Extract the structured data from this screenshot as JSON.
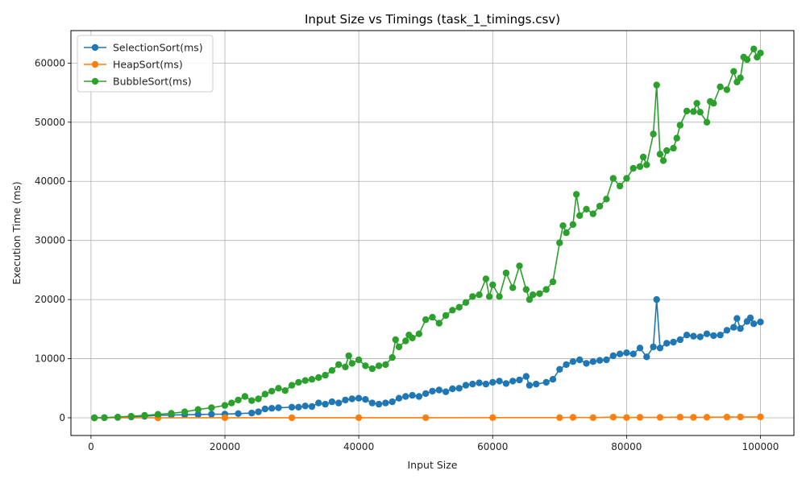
{
  "chart_data": {
    "type": "line",
    "title": "Input Size vs Timings (task_1_timings.csv)",
    "xlabel": "Input Size",
    "ylabel": "Execution Time (ms)",
    "xlim": [
      -3000,
      105000
    ],
    "ylim": [
      -3000,
      65500
    ],
    "xticks": [
      0,
      20000,
      40000,
      60000,
      80000,
      100000
    ],
    "yticks": [
      0,
      10000,
      20000,
      30000,
      40000,
      50000,
      60000
    ],
    "grid": true,
    "legend_position": "top-left",
    "marker": "circle",
    "series": [
      {
        "name": "SelectionSort(ms)",
        "color": "#1f77b4",
        "points": [
          [
            500,
            0
          ],
          [
            2000,
            20
          ],
          [
            4000,
            70
          ],
          [
            6000,
            150
          ],
          [
            8000,
            260
          ],
          [
            10000,
            400
          ],
          [
            12000,
            460
          ],
          [
            14000,
            520
          ],
          [
            16000,
            560
          ],
          [
            18000,
            590
          ],
          [
            20000,
            620
          ],
          [
            22000,
            700
          ],
          [
            24000,
            800
          ],
          [
            25000,
            1000
          ],
          [
            26000,
            1500
          ],
          [
            27000,
            1600
          ],
          [
            28000,
            1700
          ],
          [
            30000,
            1800
          ],
          [
            31000,
            1800
          ],
          [
            32000,
            2000
          ],
          [
            33000,
            1900
          ],
          [
            34000,
            2500
          ],
          [
            35000,
            2300
          ],
          [
            36000,
            2700
          ],
          [
            37000,
            2500
          ],
          [
            38000,
            3000
          ],
          [
            39000,
            3200
          ],
          [
            40000,
            3300
          ],
          [
            41000,
            3100
          ],
          [
            42000,
            2500
          ],
          [
            43000,
            2300
          ],
          [
            44000,
            2500
          ],
          [
            45000,
            2700
          ],
          [
            46000,
            3300
          ],
          [
            47000,
            3600
          ],
          [
            48000,
            3800
          ],
          [
            49000,
            3600
          ],
          [
            50000,
            4100
          ],
          [
            51000,
            4500
          ],
          [
            52000,
            4700
          ],
          [
            53000,
            4400
          ],
          [
            54000,
            4900
          ],
          [
            55000,
            5000
          ],
          [
            56000,
            5500
          ],
          [
            57000,
            5700
          ],
          [
            58000,
            5900
          ],
          [
            59000,
            5700
          ],
          [
            60000,
            6000
          ],
          [
            61000,
            6200
          ],
          [
            62000,
            5800
          ],
          [
            63000,
            6200
          ],
          [
            64000,
            6400
          ],
          [
            65000,
            7000
          ],
          [
            65500,
            5500
          ],
          [
            66500,
            5700
          ],
          [
            68000,
            6000
          ],
          [
            69000,
            6500
          ],
          [
            70000,
            8200
          ],
          [
            71000,
            9000
          ],
          [
            72000,
            9500
          ],
          [
            73000,
            9800
          ],
          [
            74000,
            9200
          ],
          [
            75000,
            9500
          ],
          [
            76000,
            9700
          ],
          [
            77000,
            9800
          ],
          [
            78000,
            10500
          ],
          [
            79000,
            10800
          ],
          [
            80000,
            11000
          ],
          [
            81000,
            10800
          ],
          [
            82000,
            11800
          ],
          [
            83000,
            10300
          ],
          [
            84000,
            12000
          ],
          [
            84500,
            20000
          ],
          [
            85000,
            11800
          ],
          [
            86000,
            12600
          ],
          [
            87000,
            12800
          ],
          [
            88000,
            13200
          ],
          [
            89000,
            14000
          ],
          [
            90000,
            13800
          ],
          [
            91000,
            13700
          ],
          [
            92000,
            14200
          ],
          [
            93000,
            13900
          ],
          [
            94000,
            14000
          ],
          [
            95000,
            14800
          ],
          [
            96000,
            15300
          ],
          [
            96500,
            16800
          ],
          [
            97000,
            15100
          ],
          [
            98000,
            16300
          ],
          [
            98500,
            16900
          ],
          [
            99000,
            15900
          ],
          [
            100000,
            16200
          ]
        ]
      },
      {
        "name": "HeapSort(ms)",
        "color": "#ff7f0e",
        "points": [
          [
            500,
            0
          ],
          [
            10000,
            2
          ],
          [
            20000,
            5
          ],
          [
            30000,
            8
          ],
          [
            40000,
            12
          ],
          [
            50000,
            16
          ],
          [
            60000,
            22
          ],
          [
            70000,
            28
          ],
          [
            72000,
            60
          ],
          [
            75000,
            30
          ],
          [
            78000,
            110
          ],
          [
            80000,
            40
          ],
          [
            82000,
            80
          ],
          [
            85000,
            60
          ],
          [
            88000,
            100
          ],
          [
            90000,
            70
          ],
          [
            92000,
            90
          ],
          [
            95000,
            120
          ],
          [
            97000,
            130
          ],
          [
            100000,
            150
          ]
        ]
      },
      {
        "name": "BubbleSort(ms)",
        "color": "#2ca02c",
        "points": [
          [
            500,
            0
          ],
          [
            2000,
            30
          ],
          [
            4000,
            120
          ],
          [
            6000,
            250
          ],
          [
            8000,
            400
          ],
          [
            10000,
            580
          ],
          [
            12000,
            750
          ],
          [
            14000,
            1000
          ],
          [
            16000,
            1400
          ],
          [
            18000,
            1700
          ],
          [
            20000,
            2100
          ],
          [
            21000,
            2500
          ],
          [
            22000,
            3000
          ],
          [
            23000,
            3600
          ],
          [
            24000,
            2900
          ],
          [
            25000,
            3200
          ],
          [
            26000,
            4000
          ],
          [
            27000,
            4500
          ],
          [
            28000,
            5000
          ],
          [
            29000,
            4600
          ],
          [
            30000,
            5500
          ],
          [
            31000,
            6000
          ],
          [
            32000,
            6300
          ],
          [
            33000,
            6500
          ],
          [
            34000,
            6800
          ],
          [
            35000,
            7200
          ],
          [
            36000,
            8000
          ],
          [
            37000,
            9000
          ],
          [
            38000,
            8600
          ],
          [
            38500,
            10500
          ],
          [
            39000,
            9200
          ],
          [
            40000,
            9800
          ],
          [
            41000,
            8800
          ],
          [
            42000,
            8300
          ],
          [
            43000,
            8800
          ],
          [
            44000,
            9000
          ],
          [
            45000,
            10200
          ],
          [
            45500,
            13200
          ],
          [
            46000,
            12000
          ],
          [
            47000,
            13000
          ],
          [
            47500,
            14000
          ],
          [
            48000,
            13500
          ],
          [
            49000,
            14200
          ],
          [
            50000,
            16600
          ],
          [
            51000,
            17000
          ],
          [
            52000,
            16000
          ],
          [
            53000,
            17300
          ],
          [
            54000,
            18200
          ],
          [
            55000,
            18700
          ],
          [
            56000,
            19500
          ],
          [
            57000,
            20500
          ],
          [
            58000,
            20800
          ],
          [
            59000,
            23500
          ],
          [
            59500,
            20500
          ],
          [
            60000,
            22500
          ],
          [
            61000,
            20500
          ],
          [
            62000,
            24500
          ],
          [
            63000,
            22000
          ],
          [
            64000,
            25700
          ],
          [
            65000,
            21700
          ],
          [
            65500,
            20000
          ],
          [
            66000,
            20800
          ],
          [
            67000,
            21000
          ],
          [
            68000,
            21700
          ],
          [
            69000,
            23000
          ],
          [
            70000,
            29600
          ],
          [
            70500,
            32500
          ],
          [
            71000,
            31300
          ],
          [
            72000,
            32700
          ],
          [
            72500,
            37800
          ],
          [
            73000,
            34200
          ],
          [
            74000,
            35300
          ],
          [
            75000,
            34500
          ],
          [
            76000,
            35800
          ],
          [
            77000,
            37000
          ],
          [
            78000,
            40500
          ],
          [
            79000,
            39200
          ],
          [
            80000,
            40500
          ],
          [
            81000,
            42200
          ],
          [
            82000,
            42500
          ],
          [
            82500,
            44100
          ],
          [
            83000,
            42800
          ],
          [
            84000,
            48000
          ],
          [
            84500,
            56300
          ],
          [
            85000,
            44600
          ],
          [
            85500,
            43500
          ],
          [
            86000,
            45200
          ],
          [
            87000,
            45600
          ],
          [
            87500,
            47300
          ],
          [
            88000,
            49500
          ],
          [
            89000,
            51900
          ],
          [
            90000,
            51800
          ],
          [
            90500,
            53200
          ],
          [
            91000,
            51700
          ],
          [
            92000,
            50000
          ],
          [
            92500,
            53500
          ],
          [
            93000,
            53200
          ],
          [
            94000,
            56000
          ],
          [
            95000,
            55500
          ],
          [
            96000,
            58600
          ],
          [
            96500,
            56800
          ],
          [
            97000,
            57500
          ],
          [
            97500,
            61000
          ],
          [
            98000,
            60600
          ],
          [
            99000,
            62400
          ],
          [
            99500,
            61000
          ],
          [
            100000,
            61700
          ]
        ]
      }
    ]
  }
}
